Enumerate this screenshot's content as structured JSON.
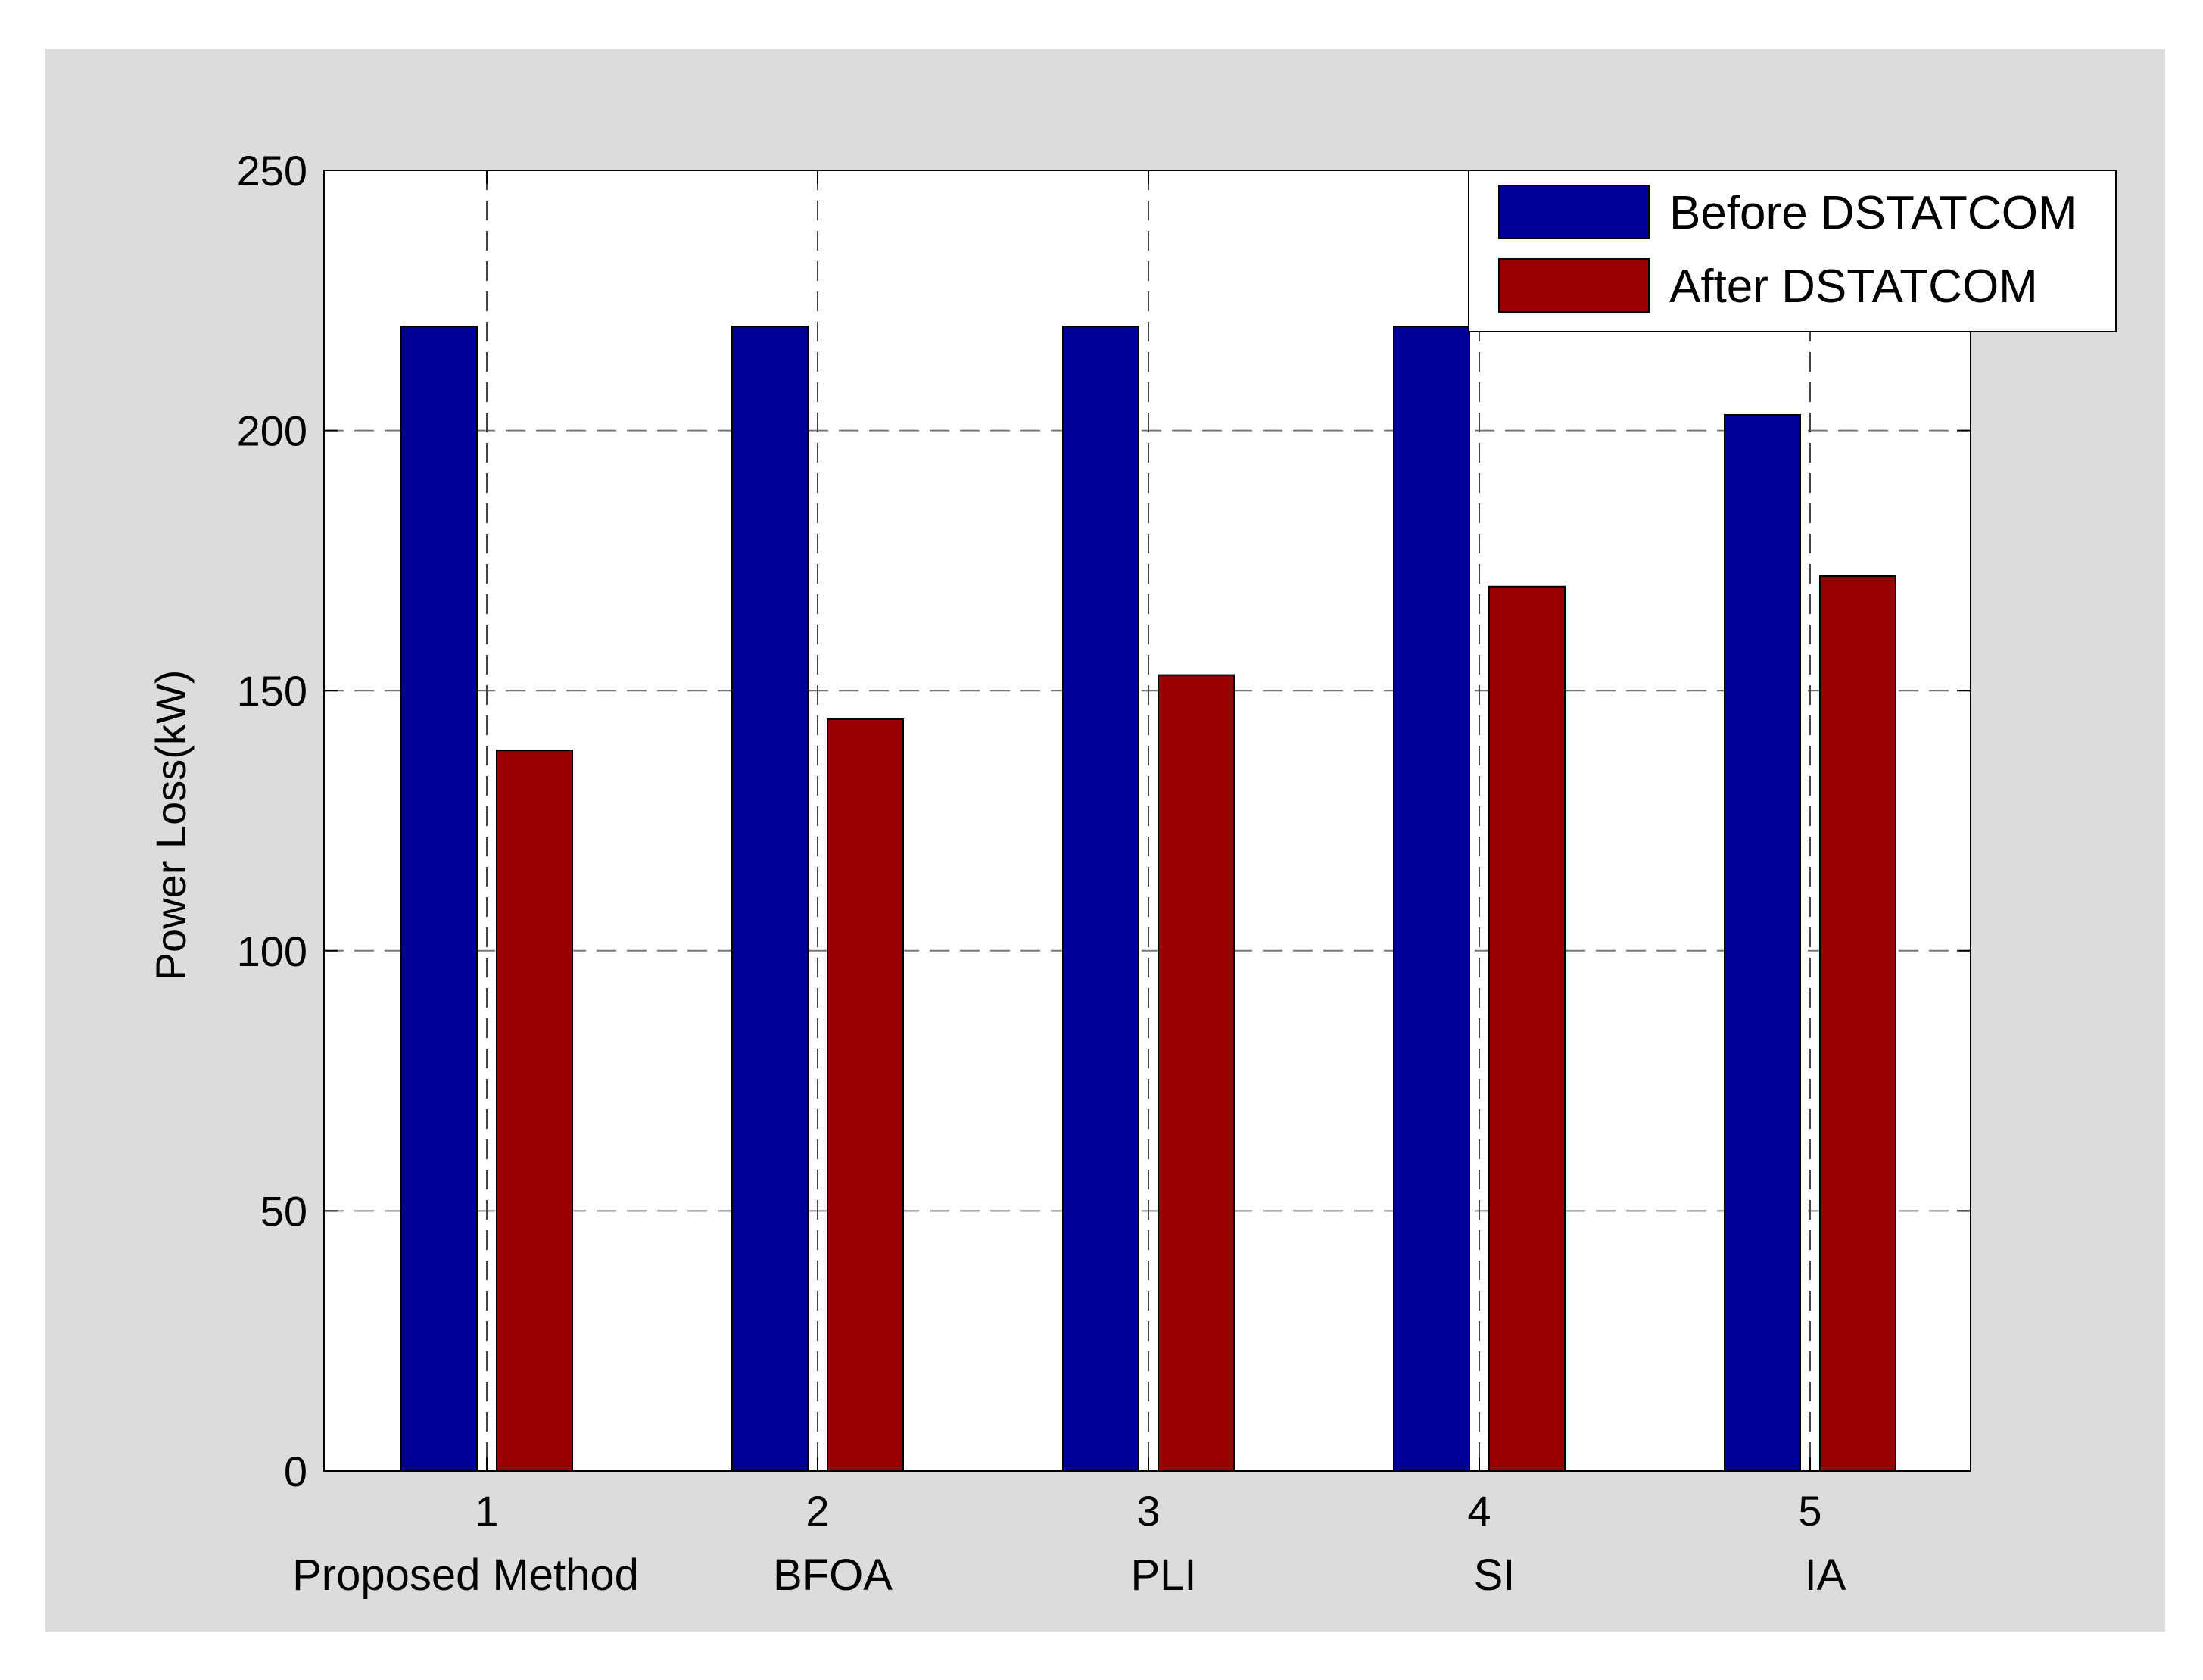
{
  "chart_data": {
    "type": "bar",
    "title": "",
    "xlabel": "",
    "ylabel": "Power Loss(kW)",
    "ylim": [
      0,
      250
    ],
    "yticks": [
      "0",
      "50",
      "100",
      "150",
      "200",
      "250"
    ],
    "xtick_labels": [
      "1",
      "2",
      "3",
      "4",
      "5"
    ],
    "categories": [
      "Proposed Method",
      "BFOA",
      "PLI",
      "SI",
      "IA"
    ],
    "grid": true,
    "legend_position": "top-right",
    "series": [
      {
        "name": "Before DSTATCOM",
        "color": "#000099",
        "values": [
          220,
          220,
          220,
          220,
          203
        ]
      },
      {
        "name": "After DSTATCOM",
        "color": "#990000",
        "values": [
          138.5,
          144.5,
          153,
          170,
          172
        ]
      }
    ]
  },
  "colors": {
    "figure_background": "#dcdcdc",
    "axes_background": "#ffffff"
  }
}
